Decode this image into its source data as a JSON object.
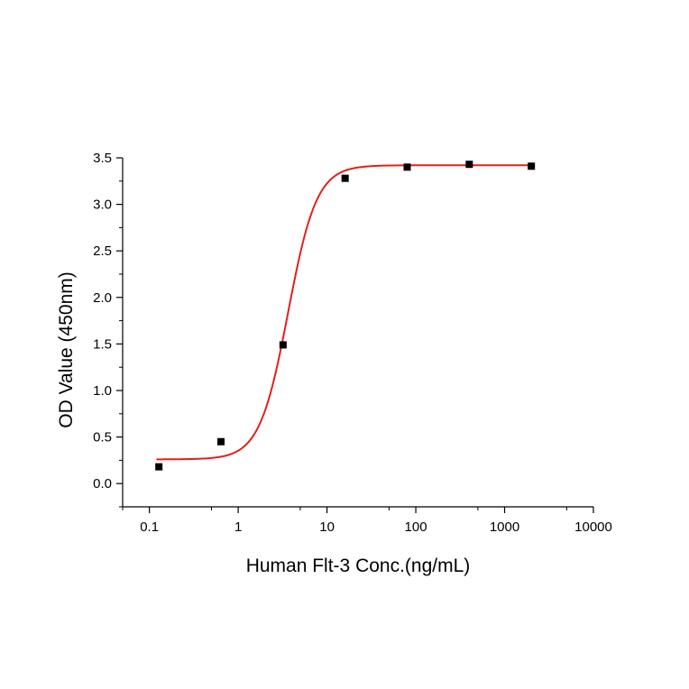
{
  "chart_data": {
    "type": "scatter",
    "title": "",
    "xlabel": "Human Flt-3 Conc.(ng/mL)",
    "ylabel": "OD Value (450nm)",
    "x_scale": "log",
    "xlim": [
      0.05,
      10000
    ],
    "ylim": [
      -0.25,
      3.5
    ],
    "x_ticks": [
      0.1,
      1,
      10,
      100,
      1000,
      10000
    ],
    "x_tick_labels": [
      "0.1",
      "1",
      "10",
      "100",
      "1000",
      "10000"
    ],
    "y_ticks": [
      0.0,
      0.5,
      1.0,
      1.5,
      2.0,
      2.5,
      3.0,
      3.5
    ],
    "y_tick_labels": [
      "0.0",
      "0.5",
      "1.0",
      "1.5",
      "2.0",
      "2.5",
      "3.0",
      "3.5"
    ],
    "grid": false,
    "series": [
      {
        "marker": "square",
        "color": "#000000",
        "x": [
          0.128,
          0.64,
          3.2,
          16,
          80,
          400,
          2000
        ],
        "y": [
          0.18,
          0.45,
          1.49,
          3.28,
          3.4,
          3.43,
          3.41
        ]
      }
    ],
    "fit": {
      "type": "4PL",
      "color": "#e3201b",
      "bottom": 0.26,
      "top": 3.42,
      "ec50": 3.65,
      "hill": 2.7,
      "x_range": [
        0.12,
        2000
      ]
    }
  }
}
